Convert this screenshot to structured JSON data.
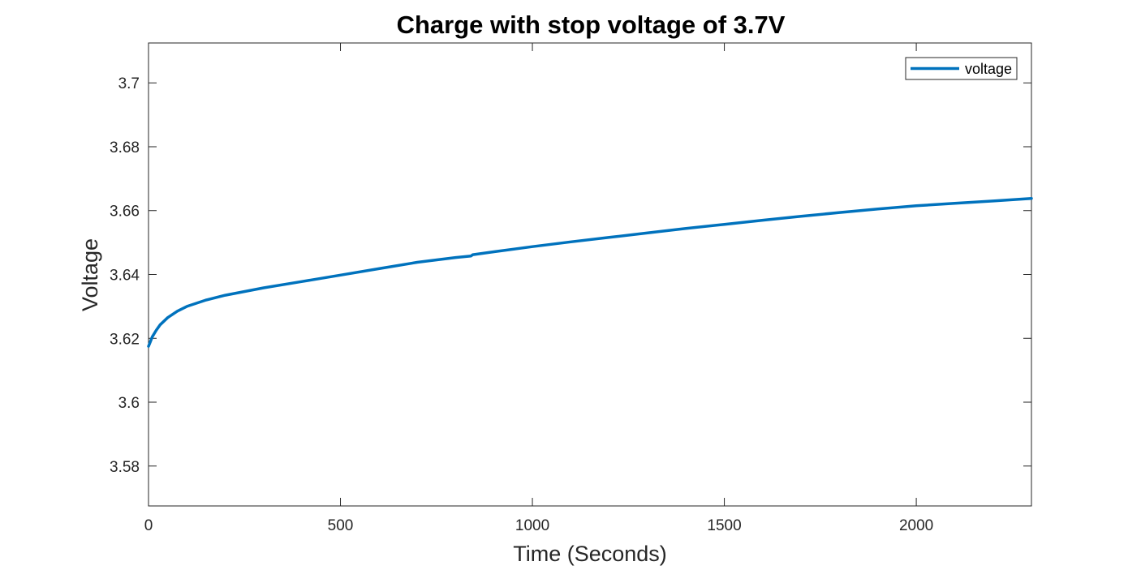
{
  "chart_data": {
    "type": "line",
    "title": "Charge with stop voltage of 3.7V",
    "xlabel": "Time (Seconds)",
    "ylabel": "Voltage",
    "xlim": [
      0,
      2300
    ],
    "ylim": [
      3.5675,
      3.7125
    ],
    "xticks": [
      0,
      500,
      1000,
      1500,
      2000
    ],
    "yticks": [
      3.58,
      3.6,
      3.62,
      3.64,
      3.66,
      3.68,
      3.7
    ],
    "xtick_labels": [
      "0",
      "500",
      "1000",
      "1500",
      "2000"
    ],
    "ytick_labels": [
      "3.58",
      "3.6",
      "3.62",
      "3.64",
      "3.66",
      "3.68",
      "3.7"
    ],
    "grid": false,
    "legend_position": "top-right",
    "series": [
      {
        "name": "voltage",
        "color": "#0072BD",
        "x": [
          0,
          5,
          10,
          20,
          30,
          50,
          75,
          100,
          150,
          200,
          300,
          400,
          500,
          600,
          700,
          800,
          840,
          845,
          900,
          1000,
          1100,
          1200,
          1300,
          1400,
          1500,
          1600,
          1700,
          1800,
          1900,
          2000,
          2100,
          2200,
          2300
        ],
        "y": [
          3.6175,
          3.619,
          3.6205,
          3.6225,
          3.6242,
          3.6265,
          3.6285,
          3.63,
          3.632,
          3.6335,
          3.6358,
          3.6378,
          3.6398,
          3.6418,
          3.6438,
          3.6453,
          3.6458,
          3.6462,
          3.6471,
          3.6487,
          3.6502,
          3.6516,
          3.653,
          3.6544,
          3.6557,
          3.657,
          3.6582,
          3.6594,
          3.6605,
          3.6615,
          3.6623,
          3.663,
          3.6638
        ]
      }
    ]
  }
}
